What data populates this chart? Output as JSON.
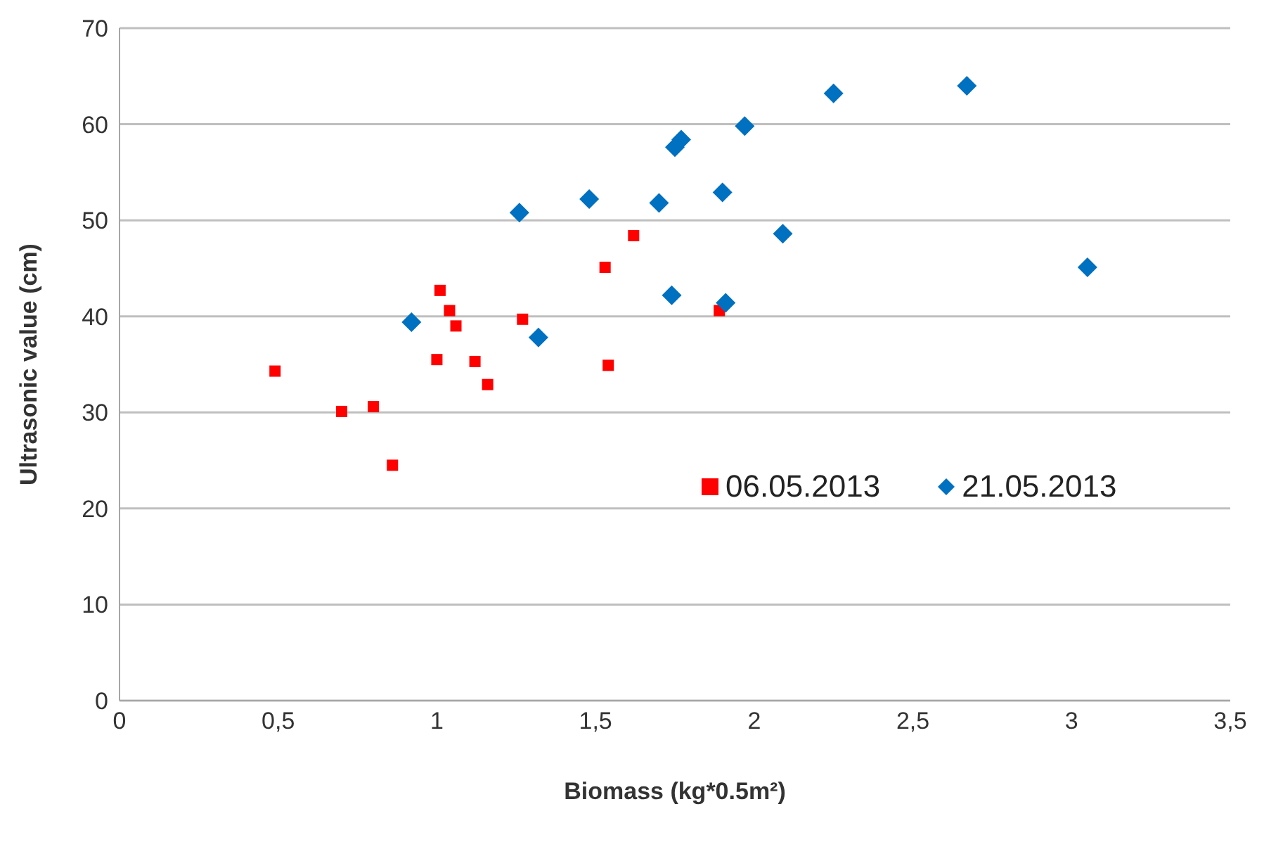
{
  "chart_data": {
    "type": "scatter",
    "xlabel": "Biomass (kg*0.5m²)",
    "ylabel": "Ultrasonic value (cm)",
    "xlim": [
      0,
      3.5
    ],
    "xticks": [
      0,
      {
        "value": 0.5,
        "label": "0,5"
      },
      1,
      {
        "value": 1.5,
        "label": "1,5"
      },
      2,
      {
        "value": 2.5,
        "label": "2,5"
      },
      3,
      {
        "value": 3.5,
        "label": "3,5"
      }
    ],
    "ylim": [
      0,
      70
    ],
    "yticks": [
      0,
      10,
      20,
      30,
      40,
      50,
      60,
      70
    ],
    "grid": "y",
    "legend": "right",
    "series": [
      {
        "name": "06.05.2013",
        "color": "#ff0000",
        "marker": "square",
        "x": [
          0.49,
          0.7,
          0.8,
          0.86,
          1.0,
          1.01,
          1.04,
          1.06,
          1.12,
          1.16,
          1.27,
          1.53,
          1.54,
          1.62,
          1.89
        ],
        "values": [
          34.3,
          30.1,
          30.6,
          24.5,
          35.5,
          42.7,
          40.6,
          39.0,
          35.3,
          32.9,
          39.7,
          45.1,
          34.9,
          48.4,
          40.6
        ]
      },
      {
        "name": "21.05.2013",
        "color": "#0070c0",
        "marker": "diamond",
        "x": [
          0.92,
          1.26,
          1.32,
          1.48,
          1.7,
          1.74,
          1.75,
          1.77,
          1.9,
          1.91,
          1.97,
          2.09,
          2.25,
          2.67,
          3.05
        ],
        "values": [
          39.4,
          50.8,
          37.8,
          52.2,
          51.8,
          42.2,
          57.6,
          58.4,
          52.9,
          41.4,
          59.8,
          48.6,
          63.2,
          64.0,
          45.1
        ]
      }
    ]
  }
}
